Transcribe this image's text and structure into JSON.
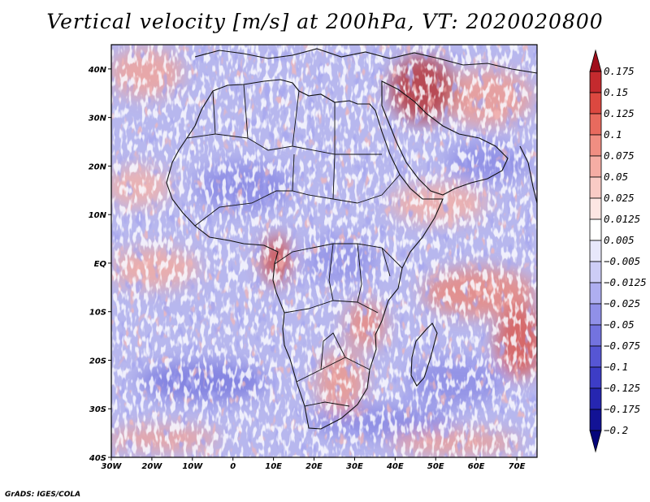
{
  "title": "Vertical velocity [m/s] at 200hPa, VT: 2020020800",
  "footer": "GrADS: IGES/COLA",
  "map": {
    "variable": "Vertical velocity",
    "units": "m/s",
    "level": "200hPa",
    "valid_time": "2020020800",
    "lon_range": [
      -30,
      75
    ],
    "lat_range": [
      -40,
      45
    ],
    "lon_ticks": [
      {
        "value": -30,
        "label": "30W"
      },
      {
        "value": -20,
        "label": "20W"
      },
      {
        "value": -10,
        "label": "10W"
      },
      {
        "value": 0,
        "label": "0"
      },
      {
        "value": 10,
        "label": "10E"
      },
      {
        "value": 20,
        "label": "20E"
      },
      {
        "value": 30,
        "label": "30E"
      },
      {
        "value": 40,
        "label": "40E"
      },
      {
        "value": 50,
        "label": "50E"
      },
      {
        "value": 60,
        "label": "60E"
      },
      {
        "value": 70,
        "label": "70E"
      }
    ],
    "lat_ticks": [
      {
        "value": 40,
        "label": "40N"
      },
      {
        "value": 30,
        "label": "30N"
      },
      {
        "value": 20,
        "label": "20N"
      },
      {
        "value": 10,
        "label": "10N"
      },
      {
        "value": 0,
        "label": "EQ"
      },
      {
        "value": -10,
        "label": "10S"
      },
      {
        "value": -20,
        "label": "20S"
      },
      {
        "value": -30,
        "label": "30S"
      },
      {
        "value": -40,
        "label": "40S"
      }
    ]
  },
  "colorbar": {
    "labels": [
      "0.175",
      "0.15",
      "0.125",
      "0.1",
      "0.075",
      "0.05",
      "0.025",
      "0.0125",
      "0.005",
      "−0.005",
      "−0.0125",
      "−0.025",
      "−0.05",
      "−0.075",
      "−0.1",
      "−0.125",
      "−0.175",
      "−0.2"
    ],
    "colors": [
      "#a00e1b",
      "#c42a2e",
      "#dc4840",
      "#e86a5e",
      "#f08e82",
      "#f5ada4",
      "#f9cbc5",
      "#fde6e3",
      "#ffffff",
      "#e8e8fb",
      "#cdcdf6",
      "#aeaef0",
      "#9090e8",
      "#7373df",
      "#5656d4",
      "#3d3dc6",
      "#2626b0",
      "#121295",
      "#05057a"
    ]
  },
  "field_colors": {
    "ocean": "#b7b7ee",
    "land": "#a5a5eb",
    "coast": "#111111",
    "frame": "#000000"
  }
}
